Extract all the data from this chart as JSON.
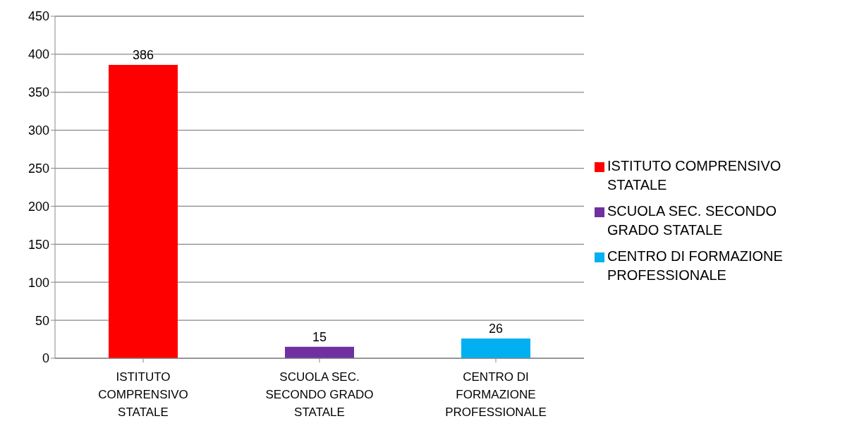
{
  "chart_data": {
    "type": "bar",
    "categories": [
      "ISTITUTO COMPRENSIVO STATALE",
      "SCUOLA SEC. SECONDO GRADO STATALE",
      "CENTRO DI FORMAZIONE PROFESSIONALE"
    ],
    "stacked": true,
    "series": [
      {
        "name": "ISTITUTO COMPRENSIVO STATALE",
        "color": "#ff0000",
        "values": [
          386,
          null,
          null
        ]
      },
      {
        "name": "SCUOLA SEC. SECONDO GRADO STATALE",
        "color": "#7030a0",
        "values": [
          null,
          15,
          null
        ]
      },
      {
        "name": "CENTRO DI FORMAZIONE PROFESSIONALE",
        "color": "#00b0f0",
        "values": [
          null,
          null,
          26
        ]
      }
    ],
    "ylim": [
      0,
      450
    ],
    "yticks": [
      0,
      50,
      100,
      150,
      200,
      250,
      300,
      350,
      400,
      450
    ],
    "grid": "y",
    "legend": "right",
    "data_labels": true
  }
}
